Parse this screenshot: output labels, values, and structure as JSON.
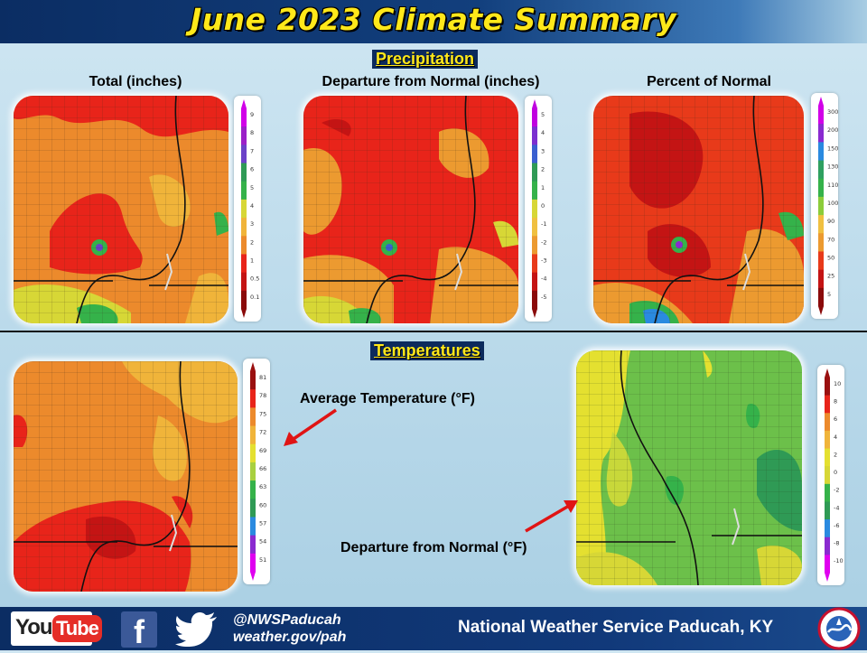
{
  "title": "June 2023 Climate Summary",
  "sections": {
    "precipitation": "Precipitation",
    "temperatures": "Temperatures"
  },
  "maps": {
    "precip_total": {
      "title": "Total (inches)",
      "scale": [
        "9",
        "8",
        "7",
        "6",
        "5",
        "4",
        "3",
        "2",
        "1",
        "0.5",
        "0.1"
      ],
      "colors": [
        "#d100e8",
        "#9b20c8",
        "#6b42c8",
        "#2f9a55",
        "#35b24a",
        "#d7d736",
        "#f0b43a",
        "#ec8a2c",
        "#e8241a",
        "#c41414",
        "#8a0a0a"
      ]
    },
    "precip_departure": {
      "title": "Departure from Normal (inches)",
      "scale": [
        "5",
        "4",
        "3",
        "2",
        "1",
        "0",
        "-1",
        "-2",
        "-3",
        "-4",
        "-5"
      ],
      "colors": [
        "#c000e0",
        "#7b2fd0",
        "#3a5fd0",
        "#2f9a55",
        "#35b24a",
        "#d7d736",
        "#f0c040",
        "#ec9a30",
        "#e83a1a",
        "#c41414",
        "#8a0a0a"
      ]
    },
    "precip_percent": {
      "title": "Percent of Normal",
      "scale": [
        "300",
        "200",
        "150",
        "130",
        "110",
        "100",
        "90",
        "70",
        "50",
        "25",
        "5"
      ],
      "colors": [
        "#d100e8",
        "#8a2ad0",
        "#2a8ae0",
        "#2fa060",
        "#35b24a",
        "#8ccc3a",
        "#f0c040",
        "#ec9a30",
        "#e83a1a",
        "#c41414",
        "#8a0a0a"
      ]
    },
    "temp_average": {
      "scale": [
        "81",
        "78",
        "75",
        "72",
        "69",
        "66",
        "63",
        "60",
        "57",
        "54",
        "51"
      ],
      "colors": [
        "#9a1010",
        "#e8241a",
        "#ec8a2c",
        "#f0b43a",
        "#e4e030",
        "#a8d040",
        "#35b24a",
        "#2f9a55",
        "#2a8ae0",
        "#8a2ad0",
        "#e000f0"
      ]
    },
    "temp_departure": {
      "scale": [
        "10",
        "8",
        "6",
        "4",
        "2",
        "0",
        "-2",
        "-4",
        "-6",
        "-8",
        "-10"
      ],
      "colors": [
        "#9a1010",
        "#e8241a",
        "#ec8a2c",
        "#f0b43a",
        "#e4e030",
        "#d7d736",
        "#35b24a",
        "#2f9a55",
        "#2a8ae0",
        "#8a2ad0",
        "#e000f0"
      ]
    }
  },
  "annotations": {
    "avg_temp": "Average Temperature (°F)",
    "departure": "Departure from Normal (°F)"
  },
  "footer": {
    "youtube_you": "You",
    "youtube_tube": "Tube",
    "facebook": "f",
    "twitter_handle": "@NWSPaducah",
    "website": "weather.gov/pah",
    "office": "National Weather Service Paducah, KY"
  },
  "colors": {
    "title": "#ffe81a",
    "header_bg": "#0b2d63",
    "arrow": "#e01414"
  },
  "icons": {
    "youtube": "youtube-logo",
    "facebook": "facebook-logo",
    "twitter": "twitter-bird-icon",
    "nws": "nws-seal"
  }
}
